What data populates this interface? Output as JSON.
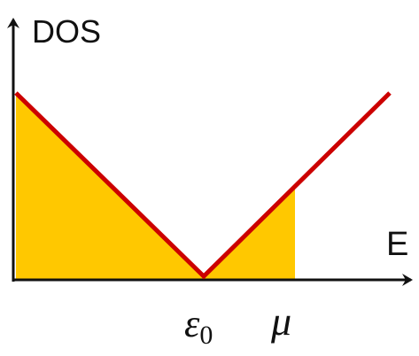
{
  "axes": {
    "y_label": "DOS",
    "x_label": "E"
  },
  "markers": {
    "dirac_point": {
      "symbol": "ε",
      "subscript": "0"
    },
    "chemical_potential": "μ"
  }
}
